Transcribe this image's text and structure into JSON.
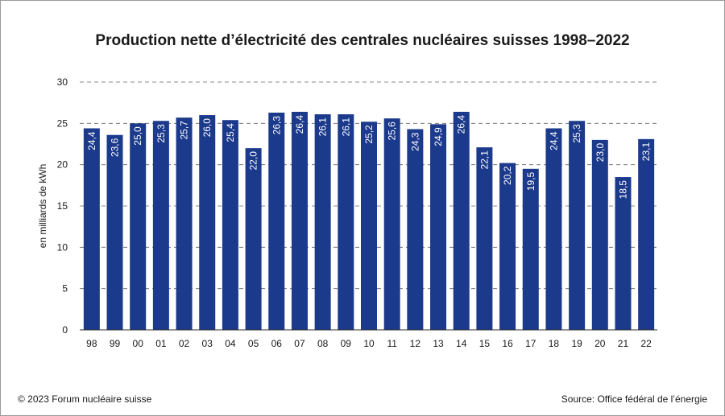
{
  "chart_data": {
    "type": "bar",
    "title": "Production nette d’électricité des centrales nucléaires suisses 1998–2022",
    "xlabel": "",
    "ylabel": "en milliards de kWh",
    "ylim": [
      0,
      30
    ],
    "yticks": [
      "0",
      "5",
      "10",
      "15",
      "20",
      "25",
      "30"
    ],
    "grid": "dashed horizontal",
    "bar_color": "#1c3a8c",
    "categories": [
      "98",
      "99",
      "00",
      "01",
      "02",
      "03",
      "04",
      "05",
      "06",
      "07",
      "08",
      "09",
      "10",
      "11",
      "12",
      "13",
      "14",
      "15",
      "16",
      "17",
      "18",
      "19",
      "20",
      "21",
      "22"
    ],
    "values": [
      24.4,
      23.6,
      25.0,
      25.3,
      25.7,
      26.0,
      25.4,
      22.0,
      26.3,
      26.4,
      26.1,
      26.1,
      25.2,
      25.6,
      24.3,
      24.9,
      26.4,
      22.1,
      20.2,
      19.5,
      24.4,
      25.3,
      23.0,
      18.5,
      23.1
    ],
    "value_labels": [
      "24,4",
      "23,6",
      "25,0",
      "25,3",
      "25,7",
      "26,0",
      "25,4",
      "22,0",
      "26,3",
      "26,4",
      "26,1",
      "26,1",
      "25,2",
      "25,6",
      "24,3",
      "24,9",
      "26,4",
      "22,1",
      "20,2",
      "19,5",
      "24,4",
      "25,3",
      "23,0",
      "18,5",
      "23,1"
    ]
  },
  "footer": {
    "copyright": "© 2023 Forum nucléaire suisse",
    "source": "Source: Office fédéral de l’énergie"
  }
}
